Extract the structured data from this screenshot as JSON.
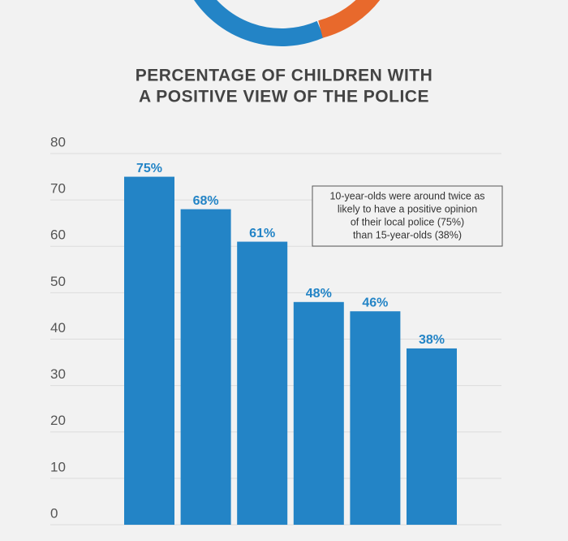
{
  "chart_data": {
    "type": "bar",
    "title": [
      "PERCENTAGE OF CHILDREN WITH",
      "A POSITIVE VIEW OF THE POLICE"
    ],
    "categories": [
      null,
      null,
      null,
      null,
      null,
      null
    ],
    "values": [
      75,
      68,
      61,
      48,
      46,
      38
    ],
    "value_labels": [
      "75%",
      "68%",
      "61%",
      "48%",
      "46%",
      "38%"
    ],
    "color": "#2384c6",
    "ylim": [
      0,
      80
    ],
    "yticks": [
      0,
      10,
      20,
      30,
      40,
      50,
      60,
      70,
      80
    ],
    "grid": true,
    "annotation": [
      "10-year-olds were around twice as",
      "likely to have a positive opinion",
      "of their local police (75%)",
      "than 15-year-olds (38%)"
    ]
  }
}
